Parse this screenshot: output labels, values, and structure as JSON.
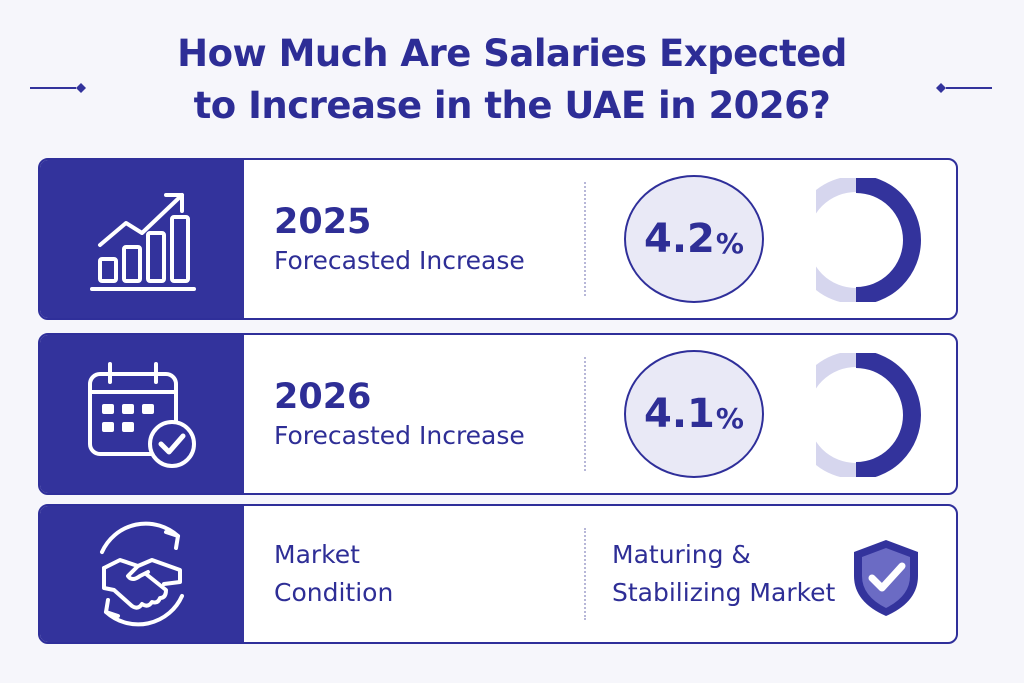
{
  "title": {
    "line1": "How Much Are Salaries Expected",
    "line2": "to Increase in the UAE in 2026?"
  },
  "colors": {
    "primary": "#33339c",
    "light": "#e9e9f6",
    "ring_light": "#d6d6ee",
    "background": "#f6f6fb"
  },
  "rows": [
    {
      "icon": "growth-chart-icon",
      "year": "2025",
      "label": "Forecasted Increase",
      "value": "4.2",
      "unit": "%",
      "ring_fill": 0.5
    },
    {
      "icon": "calendar-check-icon",
      "year": "2026",
      "label": "Forecasted Increase",
      "value": "4.1",
      "unit": "%",
      "ring_fill": 0.5
    }
  ],
  "market": {
    "icon": "handshake-icon",
    "label_line1": "Market",
    "label_line2": "Condition",
    "status_line1": "Maturing &",
    "status_line2": "Stabilizing Market",
    "status_icon": "shield-check-icon"
  }
}
